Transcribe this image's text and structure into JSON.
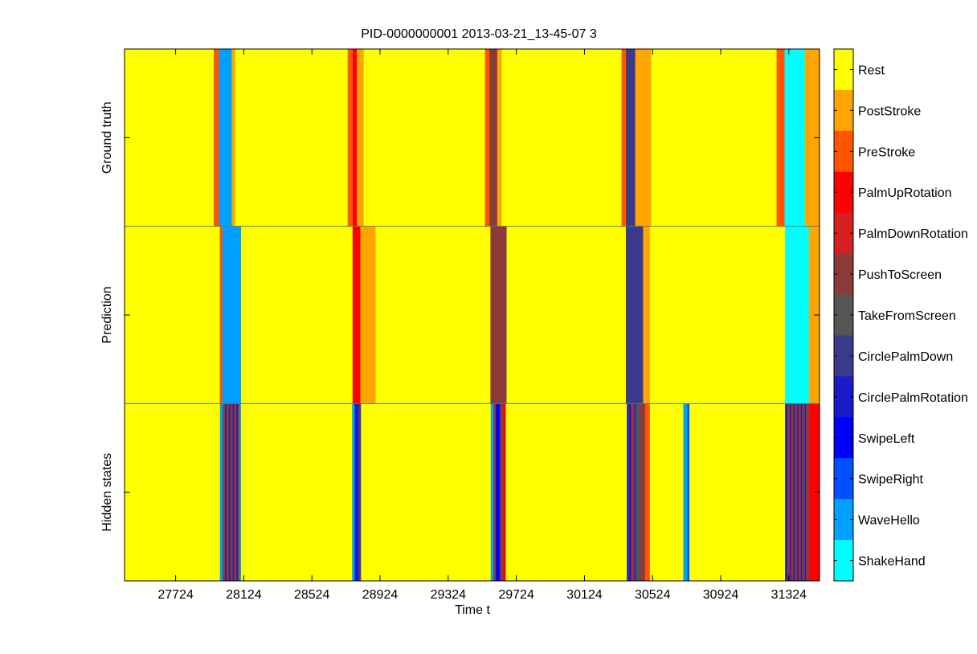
{
  "chart_data": {
    "type": "heatmap",
    "title": "PID-0000000001 2013-03-21_13-45-07 3",
    "xlabel": "Time t",
    "xlim": [
      27424,
      31504
    ],
    "xticks": [
      27724,
      28124,
      28524,
      28924,
      29324,
      29724,
      30124,
      30524,
      30924,
      31324
    ],
    "xtick_labels": [
      "27724",
      "28124",
      "28524",
      "28924",
      "29324",
      "29724",
      "30124",
      "30524",
      "30924",
      "31324"
    ],
    "rows": [
      "Ground truth",
      "Prediction",
      "Hidden states"
    ],
    "colorbar": {
      "labels": [
        "Rest",
        "PostStroke",
        "PreStroke",
        "PalmUpRotation",
        "PalmDownRotation",
        "PushToScreen",
        "TakeFromScreen",
        "CirclePalmDown",
        "CirclePalmRotation",
        "SwipeLeft",
        "SwipeRight",
        "WaveHello",
        "ShakeHand"
      ],
      "colors": [
        "#ffff00",
        "#ffa500",
        "#ff5500",
        "#ff0000",
        "#d42020",
        "#8b3a3a",
        "#555555",
        "#3a3a8c",
        "#1a1ac8",
        "#0000ff",
        "#0050ff",
        "#00a0ff",
        "#00ffff"
      ]
    },
    "segments": {
      "Ground truth": [
        {
          "start": 27424,
          "end": 27948,
          "label": "Rest"
        },
        {
          "start": 27948,
          "end": 27978,
          "label": "PreStroke"
        },
        {
          "start": 27978,
          "end": 28053,
          "label": "WaveHello"
        },
        {
          "start": 28053,
          "end": 28073,
          "label": "PostStroke"
        },
        {
          "start": 28073,
          "end": 28734,
          "label": "Rest"
        },
        {
          "start": 28734,
          "end": 28764,
          "label": "PreStroke"
        },
        {
          "start": 28764,
          "end": 28788,
          "label": "PalmUpRotation"
        },
        {
          "start": 28788,
          "end": 28828,
          "label": "PostStroke"
        },
        {
          "start": 28828,
          "end": 29540,
          "label": "Rest"
        },
        {
          "start": 29540,
          "end": 29566,
          "label": "PreStroke"
        },
        {
          "start": 29566,
          "end": 29612,
          "label": "PushToScreen"
        },
        {
          "start": 29612,
          "end": 29638,
          "label": "PostStroke"
        },
        {
          "start": 29638,
          "end": 30342,
          "label": "Rest"
        },
        {
          "start": 30342,
          "end": 30368,
          "label": "PreStroke"
        },
        {
          "start": 30368,
          "end": 30422,
          "label": "CirclePalmDown"
        },
        {
          "start": 30422,
          "end": 30516,
          "label": "PostStroke"
        },
        {
          "start": 30516,
          "end": 31252,
          "label": "Rest"
        },
        {
          "start": 31252,
          "end": 31299,
          "label": "PreStroke"
        },
        {
          "start": 31299,
          "end": 31418,
          "label": "ShakeHand"
        },
        {
          "start": 31418,
          "end": 31504,
          "label": "PostStroke"
        }
      ],
      "Prediction": [
        {
          "start": 27424,
          "end": 27983,
          "label": "Rest"
        },
        {
          "start": 27983,
          "end": 27998,
          "label": "PreStroke"
        },
        {
          "start": 27998,
          "end": 28108,
          "label": "WaveHello"
        },
        {
          "start": 28108,
          "end": 28763,
          "label": "Rest"
        },
        {
          "start": 28763,
          "end": 28808,
          "label": "PalmUpRotation"
        },
        {
          "start": 28808,
          "end": 28898,
          "label": "PostStroke"
        },
        {
          "start": 28898,
          "end": 29572,
          "label": "Rest"
        },
        {
          "start": 29572,
          "end": 29667,
          "label": "PushToScreen"
        },
        {
          "start": 29667,
          "end": 30367,
          "label": "Rest"
        },
        {
          "start": 30367,
          "end": 30468,
          "label": "CirclePalmDown"
        },
        {
          "start": 30468,
          "end": 30508,
          "label": "PostStroke"
        },
        {
          "start": 30508,
          "end": 31302,
          "label": "Rest"
        },
        {
          "start": 31302,
          "end": 31442,
          "label": "ShakeHand"
        },
        {
          "start": 31442,
          "end": 31504,
          "label": "PostStroke"
        }
      ],
      "Hidden states": [
        {
          "start": 27424,
          "end": 27984,
          "label": "Rest"
        },
        {
          "start": 27984,
          "end": 28000,
          "label": "WaveHello"
        },
        {
          "start": 28000,
          "end": 28015,
          "label": "PushToScreen"
        },
        {
          "start": 28015,
          "end": 28022,
          "label": "CirclePalmRotation"
        },
        {
          "start": 28022,
          "end": 28037,
          "label": "PushToScreen"
        },
        {
          "start": 28037,
          "end": 28044,
          "label": "CirclePalmRotation"
        },
        {
          "start": 28044,
          "end": 28059,
          "label": "PushToScreen"
        },
        {
          "start": 28059,
          "end": 28066,
          "label": "CirclePalmRotation"
        },
        {
          "start": 28066,
          "end": 28081,
          "label": "PushToScreen"
        },
        {
          "start": 28081,
          "end": 28088,
          "label": "CirclePalmRotation"
        },
        {
          "start": 28088,
          "end": 28098,
          "label": "PushToScreen"
        },
        {
          "start": 28098,
          "end": 28108,
          "label": "WaveHello"
        },
        {
          "start": 28108,
          "end": 28760,
          "label": "Rest"
        },
        {
          "start": 28760,
          "end": 28775,
          "label": "WaveHello"
        },
        {
          "start": 28775,
          "end": 28797,
          "label": "CirclePalmRotation"
        },
        {
          "start": 28797,
          "end": 28812,
          "label": "CirclePalmDown"
        },
        {
          "start": 28812,
          "end": 29574,
          "label": "Rest"
        },
        {
          "start": 29574,
          "end": 29590,
          "label": "WaveHello"
        },
        {
          "start": 29590,
          "end": 29604,
          "label": "PushToScreen"
        },
        {
          "start": 29604,
          "end": 29628,
          "label": "SwipeLeft"
        },
        {
          "start": 29628,
          "end": 29648,
          "label": "PushToScreen"
        },
        {
          "start": 29648,
          "end": 29662,
          "label": "PalmUpRotation"
        },
        {
          "start": 29662,
          "end": 30372,
          "label": "Rest"
        },
        {
          "start": 30372,
          "end": 30384,
          "label": "CirclePalmDown"
        },
        {
          "start": 30384,
          "end": 30398,
          "label": "CirclePalmRotation"
        },
        {
          "start": 30398,
          "end": 30411,
          "label": "PalmDownRotation"
        },
        {
          "start": 30411,
          "end": 30430,
          "label": "CirclePalmDown"
        },
        {
          "start": 30430,
          "end": 30450,
          "label": "TakeFromScreen"
        },
        {
          "start": 30450,
          "end": 30480,
          "label": "PushToScreen"
        },
        {
          "start": 30480,
          "end": 30508,
          "label": "PreStroke"
        },
        {
          "start": 30508,
          "end": 30704,
          "label": "Rest"
        },
        {
          "start": 30704,
          "end": 30728,
          "label": "WaveHello"
        },
        {
          "start": 30728,
          "end": 30740,
          "label": "SwipeRight"
        },
        {
          "start": 30740,
          "end": 31302,
          "label": "Rest"
        },
        {
          "start": 31302,
          "end": 31314,
          "label": "CirclePalmRotation"
        },
        {
          "start": 31314,
          "end": 31329,
          "label": "PushToScreen"
        },
        {
          "start": 31329,
          "end": 31336,
          "label": "CirclePalmRotation"
        },
        {
          "start": 31336,
          "end": 31351,
          "label": "PushToScreen"
        },
        {
          "start": 31351,
          "end": 31358,
          "label": "CirclePalmRotation"
        },
        {
          "start": 31358,
          "end": 31373,
          "label": "PushToScreen"
        },
        {
          "start": 31373,
          "end": 31380,
          "label": "CirclePalmRotation"
        },
        {
          "start": 31380,
          "end": 31395,
          "label": "PushToScreen"
        },
        {
          "start": 31395,
          "end": 31402,
          "label": "CirclePalmRotation"
        },
        {
          "start": 31402,
          "end": 31417,
          "label": "PushToScreen"
        },
        {
          "start": 31417,
          "end": 31424,
          "label": "CirclePalmRotation"
        },
        {
          "start": 31424,
          "end": 31444,
          "label": "PushToScreen"
        },
        {
          "start": 31444,
          "end": 31504,
          "label": "PalmUpRotation"
        }
      ]
    }
  }
}
